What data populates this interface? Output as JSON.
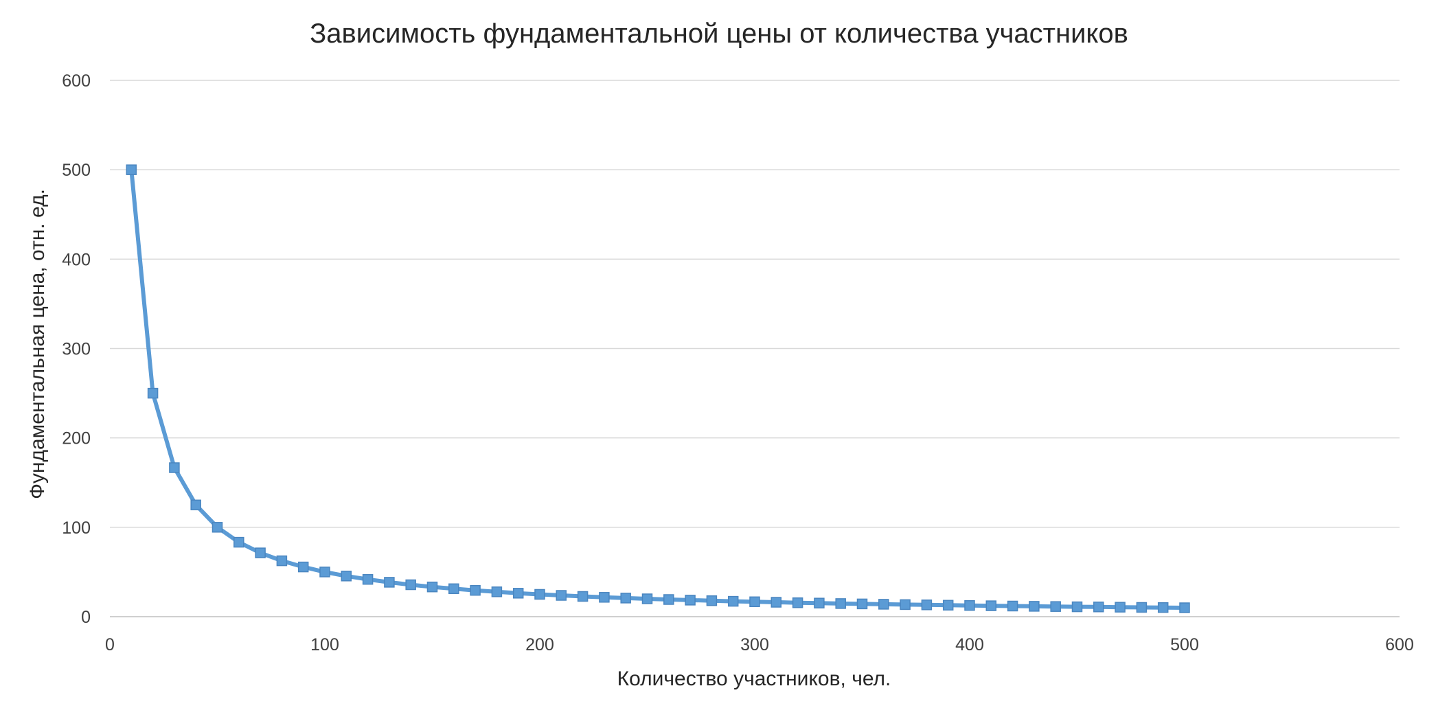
{
  "chart_data": {
    "type": "line",
    "title": "Зависимость фундаментальной цены от количества участников",
    "xlabel": "Количество участников, чел.",
    "ylabel": "Фундаментальная цена, отн. ед.",
    "xlim": [
      0,
      600
    ],
    "ylim": [
      0,
      600
    ],
    "x_ticks": [
      0,
      100,
      200,
      300,
      400,
      500,
      600
    ],
    "y_ticks": [
      0,
      100,
      200,
      300,
      400,
      500,
      600
    ],
    "grid": "horizontal",
    "legend": "none",
    "series": [
      {
        "color": "#5b9bd5",
        "marker": "square",
        "x": [
          10,
          20,
          30,
          40,
          50,
          60,
          70,
          80,
          90,
          100,
          110,
          120,
          130,
          140,
          150,
          160,
          170,
          180,
          190,
          200,
          210,
          220,
          230,
          240,
          250,
          260,
          270,
          280,
          290,
          300,
          310,
          320,
          330,
          340,
          350,
          360,
          370,
          380,
          390,
          400,
          410,
          420,
          430,
          440,
          450,
          460,
          470,
          480,
          490,
          500
        ],
        "y": [
          500,
          250,
          166.7,
          125,
          100,
          83.3,
          71.4,
          62.5,
          55.6,
          50,
          45.5,
          41.7,
          38.5,
          35.7,
          33.3,
          31.3,
          29.4,
          27.8,
          26.3,
          25,
          23.8,
          22.7,
          21.7,
          20.8,
          20,
          19.2,
          18.5,
          17.9,
          17.2,
          16.7,
          16.1,
          15.6,
          15.2,
          14.7,
          14.3,
          13.9,
          13.5,
          13.2,
          12.8,
          12.5,
          12.2,
          11.9,
          11.6,
          11.4,
          11.1,
          10.9,
          10.6,
          10.4,
          10.2,
          10
        ]
      }
    ]
  }
}
